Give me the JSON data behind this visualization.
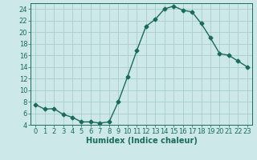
{
  "x": [
    0,
    1,
    2,
    3,
    4,
    5,
    6,
    7,
    8,
    9,
    10,
    11,
    12,
    13,
    14,
    15,
    16,
    17,
    18,
    19,
    20,
    21,
    22,
    23
  ],
  "y": [
    7.5,
    6.7,
    6.8,
    5.8,
    5.3,
    4.5,
    4.5,
    4.3,
    4.5,
    8.0,
    12.3,
    16.8,
    21.0,
    22.2,
    24.0,
    24.5,
    23.8,
    23.5,
    21.5,
    19.0,
    16.3,
    16.0,
    15.0,
    14.0
  ],
  "line_color": "#1a6b5a",
  "marker": "D",
  "markersize": 2.5,
  "linewidth": 1.0,
  "bg_color": "#cce8e8",
  "grid_color": "#aacccc",
  "xlabel": "Humidex (Indice chaleur)",
  "ylim": [
    4,
    25
  ],
  "xlim": [
    -0.5,
    23.5
  ],
  "yticks": [
    4,
    6,
    8,
    10,
    12,
    14,
    16,
    18,
    20,
    22,
    24
  ],
  "xticks": [
    0,
    1,
    2,
    3,
    4,
    5,
    6,
    7,
    8,
    9,
    10,
    11,
    12,
    13,
    14,
    15,
    16,
    17,
    18,
    19,
    20,
    21,
    22,
    23
  ],
  "tick_color": "#1a6b5a",
  "label_color": "#1a6b5a",
  "xlabel_fontsize": 7,
  "tick_fontsize": 6
}
